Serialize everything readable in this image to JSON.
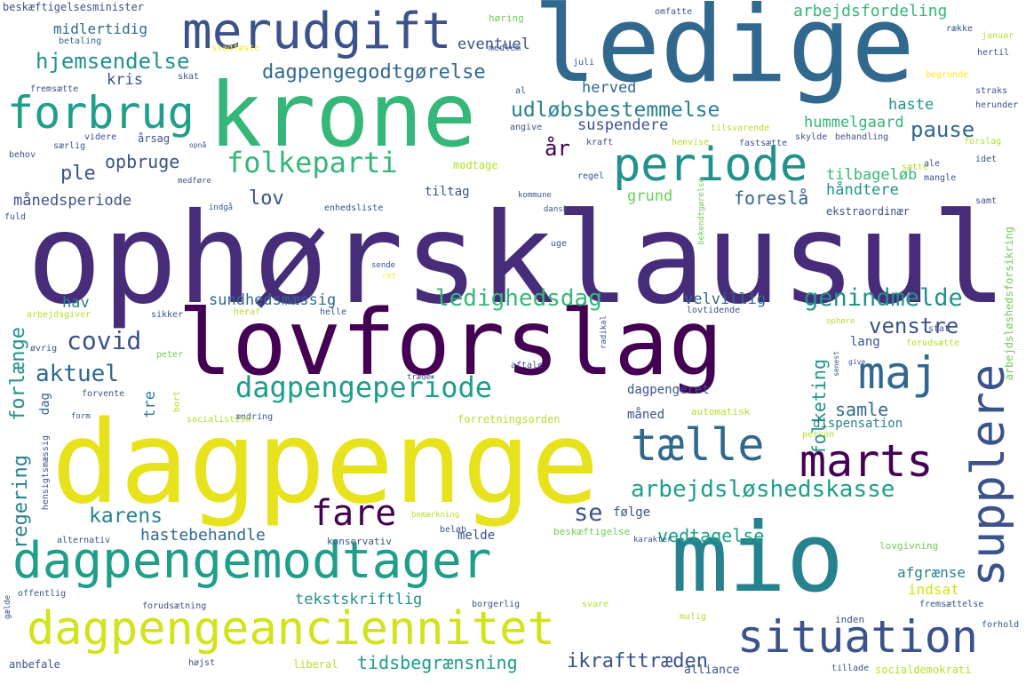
{
  "palette": {
    "dark_purple": "#440154",
    "indigo": "#472c7a",
    "blue_purple": "#3b528b",
    "slate_blue": "#31688e",
    "teal_blue": "#26828e",
    "teal": "#1f9e89",
    "green_teal": "#35b779",
    "green": "#6ece58",
    "lime": "#b5de2b",
    "yellow": "#fde725"
  },
  "words": [
    {
      "text": "ophørsklausul",
      "color": "#472c7a"
    },
    {
      "text": "dagpenge",
      "color": "#e8e21c"
    },
    {
      "text": "lovforslag",
      "color": "#440154"
    },
    {
      "text": "ledige",
      "color": "#31688e"
    },
    {
      "text": "krone",
      "color": "#35b779"
    },
    {
      "text": "mio",
      "color": "#26828e"
    },
    {
      "text": "dagpengemodtager",
      "color": "#1f9e89"
    },
    {
      "text": "dagpengeanciennitet",
      "color": "#d2e21b"
    },
    {
      "text": "merudgift",
      "color": "#3b528b"
    },
    {
      "text": "forbrug",
      "color": "#1f9e89"
    },
    {
      "text": "periode",
      "color": "#21918c"
    },
    {
      "text": "supplere",
      "color": "#3b528b"
    },
    {
      "text": "situation",
      "color": "#3b528b"
    },
    {
      "text": "tælle",
      "color": "#31688e"
    },
    {
      "text": "marts",
      "color": "#440154"
    },
    {
      "text": "maj",
      "color": "#31688e"
    },
    {
      "text": "folkeparti",
      "color": "#35b779"
    },
    {
      "text": "dagpengeperiode",
      "color": "#1f9e89"
    },
    {
      "text": "fare",
      "color": "#440154"
    },
    {
      "text": "arbejdsløshedskasse",
      "color": "#1f9e89"
    },
    {
      "text": "udløbsbestemmelse",
      "color": "#26828e"
    },
    {
      "text": "dagpengegodtgørelse",
      "color": "#31688e"
    },
    {
      "text": "hjemsendelse",
      "color": "#21918c"
    },
    {
      "text": "ledighedsdag",
      "color": "#35b779"
    },
    {
      "text": "genindmelde",
      "color": "#21918c"
    },
    {
      "text": "covid",
      "color": "#3b528b"
    },
    {
      "text": "aktuel",
      "color": "#31688e"
    },
    {
      "text": "opbruge",
      "color": "#3b528b"
    },
    {
      "text": "karens",
      "color": "#26828e"
    },
    {
      "text": "se",
      "color": "#3b528b"
    },
    {
      "text": "pause",
      "color": "#31688e"
    },
    {
      "text": "venstre",
      "color": "#3b528b"
    },
    {
      "text": "samle",
      "color": "#31688e"
    },
    {
      "text": "folketing",
      "color": "#21918c"
    },
    {
      "text": "vedtagelse",
      "color": "#1f9e89"
    },
    {
      "text": "hastebehandle",
      "color": "#31688e"
    },
    {
      "text": "tidsbegrænsning",
      "color": "#1f9e89"
    },
    {
      "text": "ikrafttræden",
      "color": "#3b528b"
    },
    {
      "text": "lov",
      "color": "#3b528b"
    },
    {
      "text": "år",
      "color": "#440154"
    },
    {
      "text": "ple",
      "color": "#3b528b"
    },
    {
      "text": "forlænge",
      "color": "#21918c"
    },
    {
      "text": "regering",
      "color": "#26828e"
    },
    {
      "text": "månedsperiode",
      "color": "#3b528b"
    },
    {
      "text": "midlertidig",
      "color": "#31688e"
    },
    {
      "text": "eventuel",
      "color": "#3b528b"
    },
    {
      "text": "herved",
      "color": "#31688e"
    },
    {
      "text": "arbejdsfordeling",
      "color": "#35b779"
    },
    {
      "text": "kris",
      "color": "#3b528b"
    },
    {
      "text": "haste",
      "color": "#21918c"
    },
    {
      "text": "hummelgaard",
      "color": "#35b779"
    },
    {
      "text": "suspendere",
      "color": "#3b528b"
    },
    {
      "text": "tilbageløb",
      "color": "#35b779"
    },
    {
      "text": "håndtere",
      "color": "#21918c"
    },
    {
      "text": "foreslå",
      "color": "#31688e"
    },
    {
      "text": "grund",
      "color": "#6ece58"
    },
    {
      "text": "tiltag",
      "color": "#3b528b"
    },
    {
      "text": "modtage",
      "color": "#b5de2b"
    },
    {
      "text": "sundhedsmæssig",
      "color": "#31688e"
    },
    {
      "text": "velvillig",
      "color": "#31688e"
    },
    {
      "text": "hav",
      "color": "#26828e"
    },
    {
      "text": "dag",
      "color": "#31688e"
    },
    {
      "text": "tre",
      "color": "#26828e"
    },
    {
      "text": "dagpengeret",
      "color": "#3b528b"
    },
    {
      "text": "måned",
      "color": "#3b528b"
    },
    {
      "text": "følge",
      "color": "#3b528b"
    },
    {
      "text": "melde",
      "color": "#3b528b"
    },
    {
      "text": "lang",
      "color": "#3b528b"
    },
    {
      "text": "dispensation",
      "color": "#26828e"
    },
    {
      "text": "afgrænse",
      "color": "#26828e"
    },
    {
      "text": "indsat",
      "color": "#d2e21b"
    },
    {
      "text": "tekstskriftlig",
      "color": "#21918c"
    },
    {
      "text": "beskæftigelsesminister",
      "color": "#3b528b"
    },
    {
      "text": "betaling",
      "color": "#31688e"
    },
    {
      "text": "fremsætte",
      "color": "#3b528b"
    },
    {
      "text": "skat",
      "color": "#3b528b"
    },
    {
      "text": "videre",
      "color": "#3b528b"
    },
    {
      "text": "særlig",
      "color": "#3b528b"
    },
    {
      "text": "behov",
      "color": "#3b528b"
    },
    {
      "text": "årsag",
      "color": "#3b528b"
    },
    {
      "text": "fuld",
      "color": "#3b528b"
    },
    {
      "text": "opnå",
      "color": "#3b528b"
    },
    {
      "text": "medføre",
      "color": "#3b528b"
    },
    {
      "text": "stadfæste",
      "color": "#fde725"
    },
    {
      "text": "høring",
      "color": "#6ece58"
    },
    {
      "text": "omfatte",
      "color": "#3b528b"
    },
    {
      "text": "medlem",
      "color": "#3b528b"
    },
    {
      "text": "juli",
      "color": "#3b528b"
    },
    {
      "text": "al",
      "color": "#3b528b"
    },
    {
      "text": "angive",
      "color": "#3b528b"
    },
    {
      "text": "kraft",
      "color": "#3b528b"
    },
    {
      "text": "regel",
      "color": "#3b528b"
    },
    {
      "text": "kommune",
      "color": "#3b528b"
    },
    {
      "text": "dansk",
      "color": "#3b528b"
    },
    {
      "text": "indgå",
      "color": "#3b528b"
    },
    {
      "text": "enhedsliste",
      "color": "#3b528b"
    },
    {
      "text": "uge",
      "color": "#3b528b"
    },
    {
      "text": "sende",
      "color": "#3b528b"
    },
    {
      "text": "ret",
      "color": "#fde725"
    },
    {
      "text": "henvise",
      "color": "#b5de2b"
    },
    {
      "text": "tilsvarende",
      "color": "#b5de2b"
    },
    {
      "text": "fastsætte",
      "color": "#3b528b"
    },
    {
      "text": "skylde",
      "color": "#3b528b"
    },
    {
      "text": "behandling",
      "color": "#3b528b"
    },
    {
      "text": "sætte",
      "color": "#b5de2b"
    },
    {
      "text": "forslag",
      "color": "#b5de2b"
    },
    {
      "text": "idet",
      "color": "#3b528b"
    },
    {
      "text": "mangle",
      "color": "#3b528b"
    },
    {
      "text": "ale",
      "color": "#3b528b"
    },
    {
      "text": "samt",
      "color": "#3b528b"
    },
    {
      "text": "ekstraordinær",
      "color": "#3b528b"
    },
    {
      "text": "række",
      "color": "#3b528b"
    },
    {
      "text": "januar",
      "color": "#b5de2b"
    },
    {
      "text": "hertil",
      "color": "#3b528b"
    },
    {
      "text": "begrunde",
      "color": "#fde725"
    },
    {
      "text": "straks",
      "color": "#3b528b"
    },
    {
      "text": "herunder",
      "color": "#3b528b"
    },
    {
      "text": "bekendtgørelse",
      "color": "#6ece58"
    },
    {
      "text": "arbejdsløshedsforsikring",
      "color": "#6ece58"
    },
    {
      "text": "stat",
      "color": "#3b528b"
    },
    {
      "text": "forudsætte",
      "color": "#b5de2b"
    },
    {
      "text": "ophøre",
      "color": "#b5de2b"
    },
    {
      "text": "lovtidende",
      "color": "#3b528b"
    },
    {
      "text": "radikal",
      "color": "#3b528b"
    },
    {
      "text": "aftale",
      "color": "#3b528b"
    },
    {
      "text": "træde",
      "color": "#3b528b"
    },
    {
      "text": "helle",
      "color": "#3b528b"
    },
    {
      "text": "heraf",
      "color": "#b5de2b"
    },
    {
      "text": "sikker",
      "color": "#3b528b"
    },
    {
      "text": "arbejdsgiver",
      "color": "#b5de2b"
    },
    {
      "text": "øvrig",
      "color": "#3b528b"
    },
    {
      "text": "peter",
      "color": "#6ece58"
    },
    {
      "text": "forvente",
      "color": "#3b528b"
    },
    {
      "text": "bort",
      "color": "#b5de2b"
    },
    {
      "text": "form",
      "color": "#3b528b"
    },
    {
      "text": "ændring",
      "color": "#3b528b"
    },
    {
      "text": "socialistisk",
      "color": "#b5de2b"
    },
    {
      "text": "automatisk",
      "color": "#b5de2b"
    },
    {
      "text": "forretningsorden",
      "color": "#b5de2b"
    },
    {
      "text": "person",
      "color": "#b5de2b"
    },
    {
      "text": "senest",
      "color": "#3b528b"
    },
    {
      "text": "give",
      "color": "#3b528b"
    },
    {
      "text": "hensigtsmæssig",
      "color": "#3b528b"
    },
    {
      "text": "bemærkning",
      "color": "#b5de2b"
    },
    {
      "text": "alternativ",
      "color": "#3b528b"
    },
    {
      "text": "konservativ",
      "color": "#3b528b"
    },
    {
      "text": "beløb",
      "color": "#3b528b"
    },
    {
      "text": "beskæftigelse",
      "color": "#6ece58"
    },
    {
      "text": "karakter",
      "color": "#3b528b"
    },
    {
      "text": "lovgivning",
      "color": "#6ece58"
    },
    {
      "text": "gælde",
      "color": "#3b528b"
    },
    {
      "text": "offentlig",
      "color": "#3b528b"
    },
    {
      "text": "forudsætning",
      "color": "#3b528b"
    },
    {
      "text": "borgerlig",
      "color": "#3b528b"
    },
    {
      "text": "svare",
      "color": "#b5de2b"
    },
    {
      "text": "mulig",
      "color": "#b5de2b"
    },
    {
      "text": "fremsættelse",
      "color": "#3b528b"
    },
    {
      "text": "inden",
      "color": "#3b528b"
    },
    {
      "text": "forhold",
      "color": "#3b528b"
    },
    {
      "text": "anbefale",
      "color": "#3b528b"
    },
    {
      "text": "højst",
      "color": "#3b528b"
    },
    {
      "text": "liberal",
      "color": "#b5de2b"
    },
    {
      "text": "alliance",
      "color": "#3b528b"
    },
    {
      "text": "tillade",
      "color": "#3b528b"
    },
    {
      "text": "socialdemokrati",
      "color": "#b5de2b"
    }
  ]
}
